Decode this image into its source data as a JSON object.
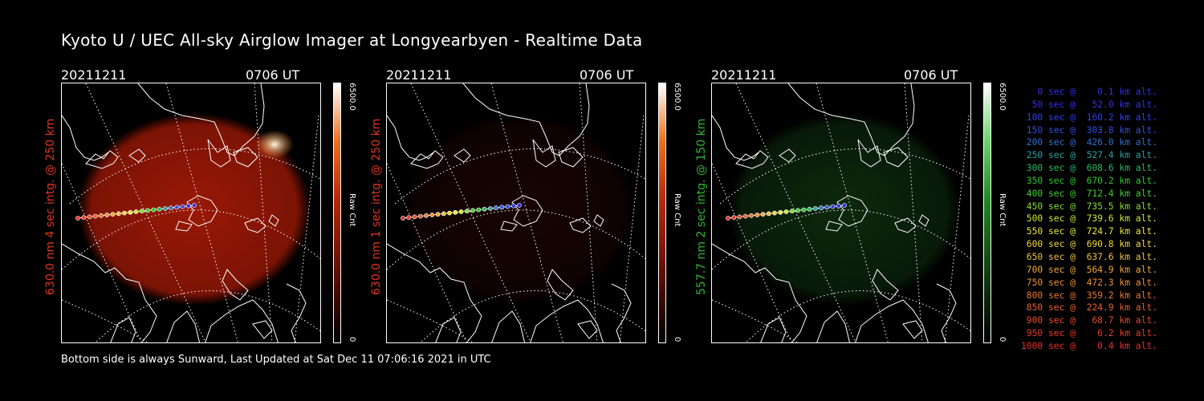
{
  "title": "Kyoto U / UEC All-sky Airglow Imager at Longyearbyen - Realtime Data",
  "footer": "Bottom side is always Sunward, Last Updated at Sat Dec 11 07:06:16 2021 in UTC",
  "panels": [
    {
      "date": "20211211",
      "time": "0706 UT",
      "ylabel": "630.0 nm 4 sec intg. @ 250 km",
      "ylabel_color": "#e0351e",
      "cbar_max": "6500.0",
      "cbar_min": "0",
      "cbar_label": "Raw Cnt",
      "glow": "#9a1806",
      "glow_level": 0.8
    },
    {
      "date": "20211211",
      "time": "0706 UT",
      "ylabel": "630.0 nm 1 sec intg. @ 250 km",
      "ylabel_color": "#e0351e",
      "cbar_max": "6500.0",
      "cbar_min": "0",
      "cbar_label": "Raw Cnt",
      "glow": "#2e0805",
      "glow_level": 0.3
    },
    {
      "date": "20211211",
      "time": "0706 UT",
      "ylabel": "557.7 nm 2 sec intg. @ 150 km",
      "ylabel_color": "#2fb52f",
      "cbar_max": "6500.0",
      "cbar_min": "0",
      "cbar_label": "Raw Cnt",
      "glow": "#174a17",
      "glow_level": 0.35
    }
  ],
  "legend": [
    {
      "text": "0 sec @    0.1 km alt.",
      "color": "#3030e8"
    },
    {
      "text": "50 sec @   52.0 km alt.",
      "color": "#3030e8"
    },
    {
      "text": "100 sec @  160.2 km alt.",
      "color": "#3040e8"
    },
    {
      "text": "150 sec @  303.8 km alt.",
      "color": "#3050e0"
    },
    {
      "text": "200 sec @  426.0 km alt.",
      "color": "#3070d0"
    },
    {
      "text": "250 sec @  527.4 km alt.",
      "color": "#2aa0a0"
    },
    {
      "text": "300 sec @  608.6 km alt.",
      "color": "#2ab860"
    },
    {
      "text": "350 sec @  670.2 km alt.",
      "color": "#30c830"
    },
    {
      "text": "400 sec @  712.4 km alt.",
      "color": "#40d030"
    },
    {
      "text": "450 sec @  735.5 km alt.",
      "color": "#80dd30"
    },
    {
      "text": "500 sec @  739.6 km alt.",
      "color": "#c8e830"
    },
    {
      "text": "550 sec @  724.7 km alt.",
      "color": "#e8e830"
    },
    {
      "text": "600 sec @  690.8 km alt.",
      "color": "#f0d838"
    },
    {
      "text": "650 sec @  637.6 km alt.",
      "color": "#f0c040"
    },
    {
      "text": "700 sec @  564.9 km alt.",
      "color": "#f0a838"
    },
    {
      "text": "750 sec @  472.3 km alt.",
      "color": "#f09030"
    },
    {
      "text": "800 sec @  359.2 km alt.",
      "color": "#e87830"
    },
    {
      "text": "850 sec @  224.9 km alt.",
      "color": "#e86030"
    },
    {
      "text": "900 sec @   68.7 km alt.",
      "color": "#e84a2a"
    },
    {
      "text": "950 sec @    6.2 km alt.",
      "color": "#e83a28"
    },
    {
      "text": "1000 sec @    0.4 km alt.",
      "color": "#e83028"
    }
  ]
}
